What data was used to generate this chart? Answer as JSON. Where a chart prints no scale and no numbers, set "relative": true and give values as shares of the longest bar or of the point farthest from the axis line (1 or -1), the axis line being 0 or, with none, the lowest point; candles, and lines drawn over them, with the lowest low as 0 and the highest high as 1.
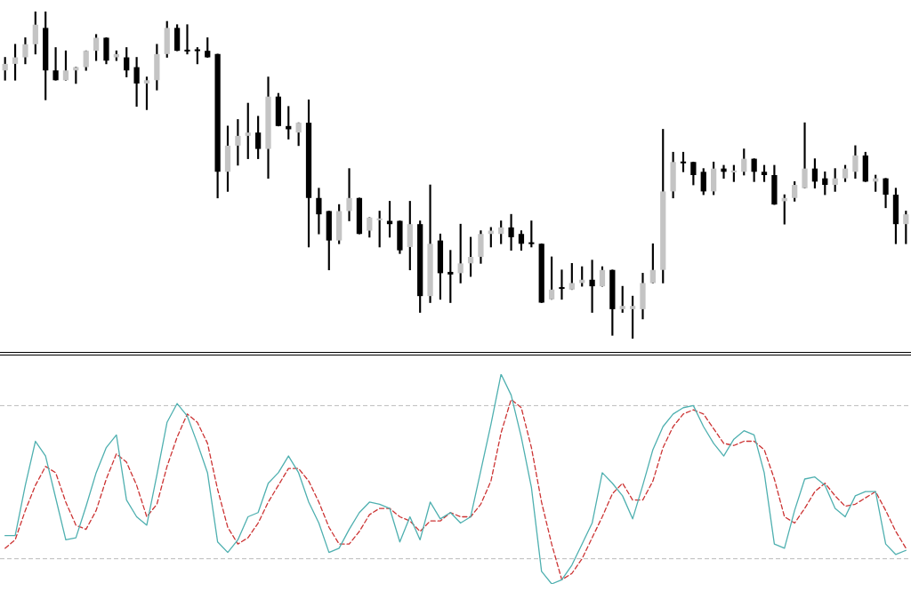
{
  "chart_data": [
    {
      "type": "candlestick",
      "relative": true,
      "categories": [
        null,
        null,
        null,
        null,
        null,
        null,
        null,
        null,
        null,
        null,
        null,
        null,
        null,
        null,
        null,
        null,
        null,
        null,
        null,
        null,
        null,
        null,
        null,
        null,
        null,
        null,
        null,
        null,
        null,
        null,
        null,
        null,
        null,
        null,
        null,
        null,
        null,
        null,
        null,
        null,
        null,
        null,
        null,
        null,
        null,
        null,
        null,
        null,
        null,
        null,
        null,
        null,
        null,
        null,
        null,
        null,
        null,
        null,
        null,
        null,
        null,
        null,
        null,
        null,
        null,
        null,
        null,
        null,
        null,
        null,
        null,
        null,
        null,
        null,
        null,
        null,
        null,
        null,
        null,
        null,
        null,
        null,
        null,
        null,
        null,
        null,
        null,
        null,
        null,
        null
      ],
      "ohlc": [
        [
          0.82,
          0.86,
          0.79,
          0.84
        ],
        [
          0.84,
          0.9,
          0.79,
          0.86
        ],
        [
          0.86,
          0.92,
          0.84,
          0.9
        ],
        [
          0.9,
          1.0,
          0.87,
          0.96
        ],
        [
          0.95,
          1.0,
          0.73,
          0.82
        ],
        [
          0.82,
          0.89,
          0.79,
          0.79
        ],
        [
          0.79,
          0.88,
          0.79,
          0.82
        ],
        [
          0.82,
          0.83,
          0.78,
          0.83
        ],
        [
          0.83,
          0.88,
          0.82,
          0.88
        ],
        [
          0.88,
          0.93,
          0.85,
          0.92
        ],
        [
          0.92,
          0.92,
          0.84,
          0.85
        ],
        [
          0.86,
          0.88,
          0.85,
          0.87
        ],
        [
          0.86,
          0.89,
          0.8,
          0.82
        ],
        [
          0.83,
          0.86,
          0.71,
          0.78
        ],
        [
          0.78,
          0.8,
          0.7,
          0.79
        ],
        [
          0.79,
          0.9,
          0.76,
          0.87
        ],
        [
          0.87,
          0.97,
          0.86,
          0.95
        ],
        [
          0.95,
          0.96,
          0.88,
          0.88
        ],
        [
          0.883,
          0.96,
          0.87,
          0.878
        ],
        [
          0.882,
          0.89,
          0.84,
          0.879
        ],
        [
          0.88,
          0.92,
          0.86,
          0.86
        ],
        [
          0.87,
          0.87,
          0.43,
          0.51
        ],
        [
          0.51,
          0.65,
          0.45,
          0.59
        ],
        [
          0.59,
          0.67,
          0.53,
          0.62
        ],
        [
          0.62,
          0.72,
          0.55,
          0.63
        ],
        [
          0.63,
          0.68,
          0.55,
          0.58
        ],
        [
          0.58,
          0.8,
          0.49,
          0.74
        ],
        [
          0.74,
          0.75,
          0.65,
          0.65
        ],
        [
          0.65,
          0.71,
          0.61,
          0.64
        ],
        [
          0.63,
          0.66,
          0.59,
          0.66
        ],
        [
          0.66,
          0.73,
          0.28,
          0.43
        ],
        [
          0.43,
          0.46,
          0.32,
          0.38
        ],
        [
          0.39,
          0.39,
          0.21,
          0.3
        ],
        [
          0.3,
          0.41,
          0.29,
          0.39
        ],
        [
          0.39,
          0.52,
          0.36,
          0.43
        ],
        [
          0.43,
          0.43,
          0.32,
          0.32
        ],
        [
          0.33,
          0.37,
          0.31,
          0.37
        ],
        [
          0.362,
          0.39,
          0.28,
          0.365
        ],
        [
          0.36,
          0.42,
          0.31,
          0.35
        ],
        [
          0.36,
          0.36,
          0.26,
          0.27
        ],
        [
          0.28,
          0.42,
          0.21,
          0.35
        ],
        [
          0.35,
          0.36,
          0.08,
          0.13
        ],
        [
          0.13,
          0.47,
          0.11,
          0.29
        ],
        [
          0.3,
          0.32,
          0.12,
          0.2
        ],
        [
          0.204,
          0.27,
          0.11,
          0.196
        ],
        [
          0.2,
          0.35,
          0.17,
          0.23
        ],
        [
          0.23,
          0.31,
          0.19,
          0.25
        ],
        [
          0.25,
          0.33,
          0.23,
          0.32
        ],
        [
          0.32,
          0.34,
          0.28,
          0.33
        ],
        [
          0.32,
          0.36,
          0.29,
          0.34
        ],
        [
          0.34,
          0.38,
          0.27,
          0.31
        ],
        [
          0.32,
          0.33,
          0.27,
          0.29
        ],
        [
          0.292,
          0.36,
          0.28,
          0.289
        ],
        [
          0.29,
          0.29,
          0.11,
          0.11
        ],
        [
          0.12,
          0.25,
          0.12,
          0.15
        ],
        [
          0.155,
          0.21,
          0.12,
          0.152
        ],
        [
          0.15,
          0.23,
          0.15,
          0.17
        ],
        [
          0.17,
          0.22,
          0.16,
          0.18
        ],
        [
          0.18,
          0.24,
          0.08,
          0.16
        ],
        [
          0.16,
          0.22,
          0.16,
          0.21
        ],
        [
          0.21,
          0.21,
          0.01,
          0.09
        ],
        [
          0.09,
          0.16,
          0.08,
          0.1
        ],
        [
          0.09,
          0.13,
          0.0,
          0.1
        ],
        [
          0.09,
          0.2,
          0.06,
          0.17
        ],
        [
          0.17,
          0.29,
          0.17,
          0.21
        ],
        [
          0.21,
          0.64,
          0.17,
          0.45
        ],
        [
          0.45,
          0.57,
          0.43,
          0.54
        ],
        [
          0.54,
          0.57,
          0.51,
          0.536
        ],
        [
          0.54,
          0.54,
          0.47,
          0.5
        ],
        [
          0.51,
          0.52,
          0.44,
          0.45
        ],
        [
          0.45,
          0.54,
          0.44,
          0.52
        ],
        [
          0.52,
          0.53,
          0.49,
          0.51
        ],
        [
          0.508,
          0.53,
          0.48,
          0.514
        ],
        [
          0.51,
          0.58,
          0.5,
          0.55
        ],
        [
          0.55,
          0.55,
          0.48,
          0.51
        ],
        [
          0.51,
          0.53,
          0.48,
          0.5
        ],
        [
          0.5,
          0.53,
          0.41,
          0.41
        ],
        [
          0.42,
          0.44,
          0.35,
          0.43
        ],
        [
          0.43,
          0.48,
          0.42,
          0.47
        ],
        [
          0.46,
          0.66,
          0.46,
          0.52
        ],
        [
          0.52,
          0.55,
          0.46,
          0.48
        ],
        [
          0.49,
          0.51,
          0.44,
          0.47
        ],
        [
          0.47,
          0.52,
          0.45,
          0.49
        ],
        [
          0.49,
          0.53,
          0.48,
          0.52
        ],
        [
          0.51,
          0.59,
          0.49,
          0.56
        ],
        [
          0.56,
          0.57,
          0.48,
          0.48
        ],
        [
          0.48,
          0.5,
          0.45,
          0.49
        ],
        [
          0.49,
          0.49,
          0.4,
          0.44
        ],
        [
          0.44,
          0.46,
          0.29,
          0.35
        ],
        [
          0.35,
          0.39,
          0.29,
          0.38
        ]
      ]
    },
    {
      "type": "line",
      "relative": true,
      "marker": "none",
      "categories": [
        null,
        null,
        null,
        null,
        null,
        null,
        null,
        null,
        null,
        null,
        null,
        null,
        null,
        null,
        null,
        null,
        null,
        null,
        null,
        null,
        null,
        null,
        null,
        null,
        null,
        null,
        null,
        null,
        null,
        null,
        null,
        null,
        null,
        null,
        null,
        null,
        null,
        null,
        null,
        null,
        null,
        null,
        null,
        null,
        null,
        null,
        null,
        null,
        null,
        null,
        null,
        null,
        null,
        null,
        null,
        null,
        null,
        null,
        null,
        null,
        null,
        null,
        null,
        null,
        null,
        null,
        null,
        null,
        null,
        null,
        null,
        null,
        null,
        null,
        null,
        null,
        null,
        null,
        null,
        null,
        null,
        null,
        null,
        null,
        null,
        null,
        null,
        null,
        null,
        null
      ],
      "series": [
        {
          "color": "#4fb0b0",
          "line_style": "solid",
          "values": [
            0.23,
            0.23,
            0.47,
            0.68,
            0.61,
            0.41,
            0.21,
            0.22,
            0.37,
            0.53,
            0.65,
            0.71,
            0.4,
            0.32,
            0.28,
            0.52,
            0.77,
            0.86,
            0.8,
            0.67,
            0.53,
            0.2,
            0.15,
            0.21,
            0.32,
            0.34,
            0.48,
            0.53,
            0.61,
            0.53,
            0.39,
            0.29,
            0.15,
            0.17,
            0.26,
            0.34,
            0.39,
            0.38,
            0.36,
            0.2,
            0.32,
            0.21,
            0.39,
            0.31,
            0.34,
            0.29,
            0.32,
            0.54,
            0.76,
            1.0,
            0.9,
            0.7,
            0.46,
            0.06,
            0.0,
            0.02,
            0.09,
            0.19,
            0.29,
            0.53,
            0.48,
            0.42,
            0.31,
            0.47,
            0.64,
            0.75,
            0.81,
            0.84,
            0.85,
            0.75,
            0.67,
            0.61,
            0.69,
            0.73,
            0.71,
            0.53,
            0.19,
            0.17,
            0.35,
            0.5,
            0.51,
            0.47,
            0.36,
            0.32,
            0.42,
            0.44,
            0.44,
            0.19,
            0.14,
            0.16
          ]
        },
        {
          "color": "#cc3333",
          "line_style": "dashed",
          "values": [
            0.17,
            0.21,
            0.35,
            0.47,
            0.56,
            0.53,
            0.39,
            0.28,
            0.26,
            0.35,
            0.5,
            0.62,
            0.58,
            0.47,
            0.32,
            0.38,
            0.56,
            0.7,
            0.81,
            0.77,
            0.67,
            0.45,
            0.27,
            0.19,
            0.22,
            0.29,
            0.39,
            0.47,
            0.55,
            0.55,
            0.49,
            0.39,
            0.27,
            0.19,
            0.19,
            0.25,
            0.33,
            0.36,
            0.36,
            0.32,
            0.3,
            0.25,
            0.3,
            0.3,
            0.34,
            0.32,
            0.32,
            0.38,
            0.49,
            0.72,
            0.88,
            0.84,
            0.65,
            0.39,
            0.19,
            0.02,
            0.05,
            0.12,
            0.22,
            0.32,
            0.43,
            0.48,
            0.4,
            0.4,
            0.49,
            0.65,
            0.75,
            0.81,
            0.83,
            0.81,
            0.74,
            0.67,
            0.66,
            0.68,
            0.68,
            0.64,
            0.5,
            0.32,
            0.29,
            0.36,
            0.44,
            0.48,
            0.42,
            0.37,
            0.38,
            0.41,
            0.44,
            0.35,
            0.25,
            0.17
          ]
        }
      ],
      "ref_lines": [
        {
          "axis": "y",
          "value": 0.85,
          "color": "#bbbbbb",
          "line_style": "dashed"
        },
        {
          "axis": "y",
          "value": 0.12,
          "color": "#bbbbbb",
          "line_style": "dashed"
        }
      ]
    }
  ]
}
